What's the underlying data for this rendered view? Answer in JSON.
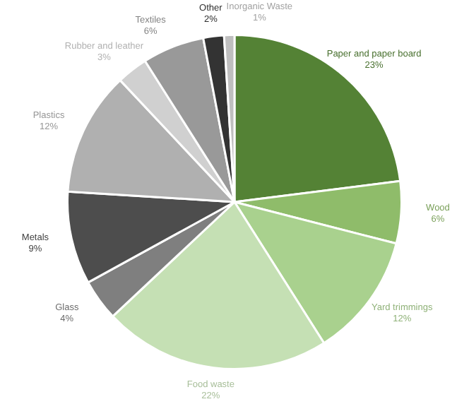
{
  "chart_data": {
    "type": "pie",
    "categories": [
      "Paper and paper board",
      "Wood",
      "Yard trimmings",
      "Food waste",
      "Glass",
      "Metals",
      "Plastics",
      "Rubber and leather",
      "Textiles",
      "Other",
      "Inorganic Waste"
    ],
    "values": [
      23,
      6,
      12,
      22,
      4,
      9,
      12,
      3,
      6,
      2,
      1
    ],
    "value_labels": [
      "23%",
      "6%",
      "12%",
      "22%",
      "4%",
      "9%",
      "12%",
      "3%",
      "6%",
      "2%",
      "1%"
    ],
    "colors": [
      "#548235",
      "#8fbc6a",
      "#a9d18e",
      "#c5e0b4",
      "#7f7f7f",
      "#4d4d4d",
      "#b0b0b0",
      "#d0d0d0",
      "#999999",
      "#333333",
      "#bfbfbf"
    ],
    "legend": false
  }
}
